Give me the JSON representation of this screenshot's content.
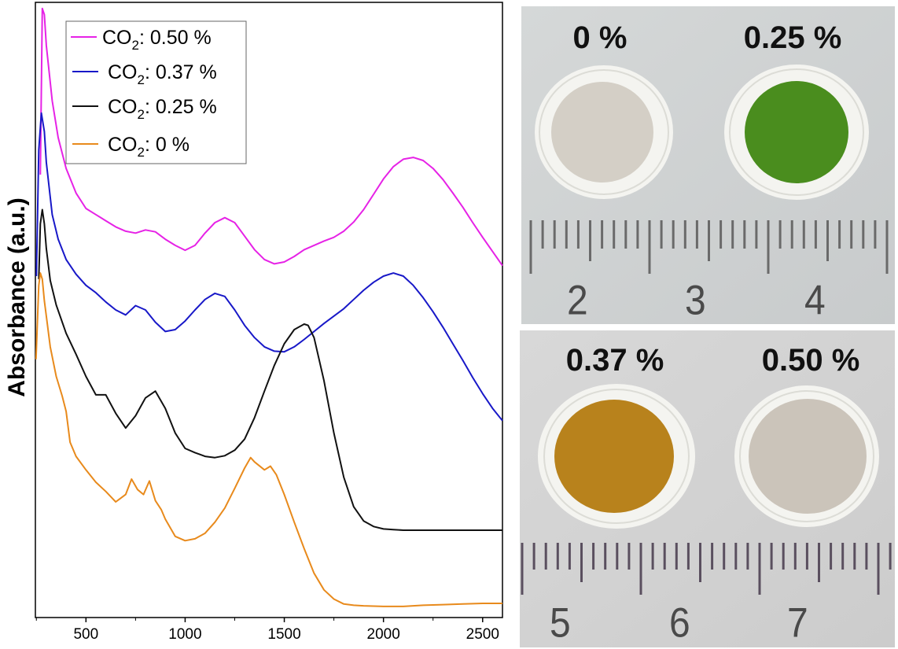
{
  "chart_data": {
    "type": "line",
    "ylabel": "Absorbance (a.u.)",
    "xlabel": "",
    "xlim": [
      245,
      2600
    ],
    "ylim": [
      0,
      1
    ],
    "x_ticks": [
      500,
      1000,
      1500,
      2000,
      2500
    ],
    "y_ticks_shown": false,
    "legend_position": "top-left",
    "legend_order": [
      0,
      1,
      2,
      3
    ],
    "series": [
      {
        "name_main": "CO",
        "name_sub": "2",
        "name_rest": ": 0.50 %",
        "color": "#e622e6",
        "x": [
          270,
          280,
          290,
          300,
          330,
          360,
          400,
          450,
          500,
          550,
          600,
          650,
          700,
          750,
          800,
          850,
          900,
          950,
          1000,
          1050,
          1100,
          1150,
          1200,
          1250,
          1300,
          1350,
          1400,
          1450,
          1500,
          1550,
          1600,
          1650,
          1700,
          1750,
          1800,
          1850,
          1900,
          1950,
          2000,
          2050,
          2100,
          2150,
          2200,
          2250,
          2300,
          2350,
          2400,
          2450,
          2500,
          2550,
          2600
        ],
        "y": [
          0.72,
          0.99,
          0.98,
          0.93,
          0.84,
          0.78,
          0.73,
          0.69,
          0.665,
          0.655,
          0.645,
          0.635,
          0.628,
          0.625,
          0.63,
          0.627,
          0.615,
          0.605,
          0.597,
          0.605,
          0.625,
          0.642,
          0.65,
          0.642,
          0.62,
          0.598,
          0.582,
          0.575,
          0.578,
          0.587,
          0.598,
          0.605,
          0.612,
          0.618,
          0.628,
          0.643,
          0.663,
          0.688,
          0.713,
          0.733,
          0.745,
          0.748,
          0.743,
          0.73,
          0.712,
          0.69,
          0.667,
          0.642,
          0.618,
          0.595,
          0.572
        ]
      },
      {
        "name_main": "CO",
        "name_sub": "2",
        "name_rest": ": 0.37 %",
        "color": "#1818c8",
        "x": [
          250,
          262,
          275,
          290,
          300,
          330,
          360,
          400,
          450,
          500,
          550,
          600,
          650,
          700,
          750,
          800,
          850,
          900,
          950,
          1000,
          1050,
          1100,
          1150,
          1200,
          1250,
          1300,
          1350,
          1400,
          1450,
          1500,
          1550,
          1600,
          1650,
          1700,
          1750,
          1800,
          1850,
          1900,
          1950,
          2000,
          2050,
          2100,
          2150,
          2200,
          2250,
          2300,
          2350,
          2400,
          2450,
          2500,
          2550,
          2600
        ],
        "y": [
          0.555,
          0.76,
          0.82,
          0.79,
          0.74,
          0.655,
          0.615,
          0.582,
          0.558,
          0.54,
          0.528,
          0.513,
          0.5,
          0.492,
          0.507,
          0.5,
          0.48,
          0.465,
          0.468,
          0.482,
          0.5,
          0.517,
          0.527,
          0.522,
          0.5,
          0.475,
          0.455,
          0.44,
          0.433,
          0.432,
          0.44,
          0.452,
          0.465,
          0.478,
          0.49,
          0.502,
          0.517,
          0.532,
          0.545,
          0.555,
          0.56,
          0.555,
          0.54,
          0.52,
          0.497,
          0.472,
          0.445,
          0.418,
          0.39,
          0.364,
          0.34,
          0.32
        ]
      },
      {
        "name_main": "CO",
        "name_sub": "2",
        "name_rest": ": 0.25 %",
        "color": "#111111",
        "x": [
          262,
          270,
          280,
          290,
          300,
          320,
          350,
          400,
          450,
          500,
          550,
          600,
          650,
          700,
          750,
          800,
          850,
          900,
          950,
          1000,
          1050,
          1100,
          1150,
          1200,
          1250,
          1300,
          1350,
          1400,
          1450,
          1500,
          1550,
          1600,
          1620,
          1650,
          1700,
          1750,
          1800,
          1850,
          1900,
          1950,
          2000,
          2050,
          2100,
          2200,
          2300,
          2400,
          2500,
          2600
        ],
        "y": [
          0.55,
          0.64,
          0.663,
          0.64,
          0.6,
          0.548,
          0.508,
          0.462,
          0.428,
          0.392,
          0.362,
          0.362,
          0.332,
          0.308,
          0.328,
          0.357,
          0.368,
          0.34,
          0.3,
          0.275,
          0.268,
          0.262,
          0.26,
          0.263,
          0.272,
          0.29,
          0.325,
          0.368,
          0.41,
          0.445,
          0.468,
          0.477,
          0.475,
          0.455,
          0.385,
          0.3,
          0.228,
          0.18,
          0.157,
          0.148,
          0.144,
          0.143,
          0.142,
          0.142,
          0.142,
          0.142,
          0.142,
          0.142
        ]
      },
      {
        "name_main": "CO",
        "name_sub": "2",
        "name_rest": ": 0 %",
        "color": "#e88a1c",
        "x": [
          248,
          262,
          270,
          280,
          290,
          300,
          320,
          350,
          380,
          400,
          420,
          450,
          500,
          550,
          600,
          650,
          700,
          730,
          760,
          790,
          820,
          850,
          880,
          900,
          950,
          1000,
          1050,
          1100,
          1150,
          1200,
          1250,
          1300,
          1330,
          1350,
          1400,
          1430,
          1460,
          1500,
          1550,
          1600,
          1650,
          1700,
          1750,
          1800,
          1850,
          1900,
          2000,
          2100,
          2200,
          2300,
          2400,
          2500,
          2600
        ],
        "y": [
          0.42,
          0.54,
          0.56,
          0.55,
          0.515,
          0.49,
          0.44,
          0.392,
          0.36,
          0.335,
          0.285,
          0.262,
          0.24,
          0.22,
          0.205,
          0.188,
          0.2,
          0.225,
          0.208,
          0.2,
          0.222,
          0.19,
          0.175,
          0.16,
          0.132,
          0.125,
          0.128,
          0.137,
          0.155,
          0.178,
          0.21,
          0.243,
          0.26,
          0.253,
          0.24,
          0.246,
          0.232,
          0.2,
          0.155,
          0.112,
          0.072,
          0.045,
          0.03,
          0.022,
          0.02,
          0.019,
          0.018,
          0.018,
          0.02,
          0.021,
          0.022,
          0.023,
          0.023
        ]
      }
    ]
  },
  "photos": {
    "top": {
      "labels": [
        "0 %",
        "0.25 %"
      ],
      "disc_colors": [
        "#d4cfc6",
        "#4a8d1e"
      ],
      "ruler_numbers": [
        "2",
        "3",
        "4"
      ]
    },
    "bottom": {
      "labels": [
        "0.37 %",
        "0.50 %"
      ],
      "disc_colors": [
        "#b8821c",
        "#cbc4ba"
      ],
      "ruler_numbers": [
        "5",
        "6",
        "7"
      ]
    }
  }
}
